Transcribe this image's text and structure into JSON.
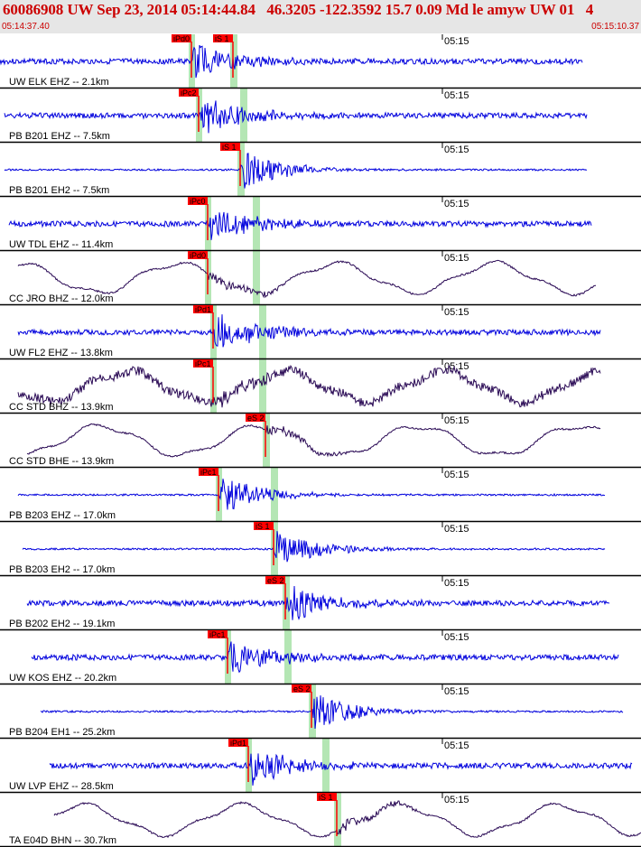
{
  "header": {
    "title": "60086908 UW Sep 23, 2014 05:14:44.84   46.3205 -122.3592 15.7 0.09 Md le amyw UW 01   4",
    "start_time": "05:14:37.40",
    "end_time": "05:15:10.37"
  },
  "colors": {
    "hp": "#0000dd",
    "bb": "#2a0a55",
    "pick": "#ff0000",
    "band": "#b4e6b4",
    "grid": "#000000"
  },
  "chart_data": {
    "type": "line",
    "title": "60086908 UW Sep 23, 2014 05:14:44.84   46.3205 -122.3592 15.7 0.09 Md le amyw UW 01   4",
    "xlim": [
      "05:14:37.40",
      "05:15:10.37"
    ],
    "minute_tick": "05:15",
    "traces": [
      {
        "label": "UW ELK EHZ -- 2.1km",
        "color": "blue",
        "picks": [
          "iPd0",
          "iS 1"
        ],
        "amp": "high"
      },
      {
        "label": "PB B201 EHZ -- 7.5km",
        "color": "blue",
        "picks": [
          "iPc2"
        ],
        "amp": "high"
      },
      {
        "label": "PB B201 EH2 -- 7.5km",
        "color": "blue",
        "picks": [
          "iS 1"
        ],
        "amp": "medium"
      },
      {
        "label": "UW TDL EHZ -- 11.4km",
        "color": "blue",
        "picks": [
          "iPc0"
        ],
        "amp": "high"
      },
      {
        "label": "CC JRO BHZ -- 12.0km",
        "color": "purple",
        "picks": [
          "iPd0"
        ],
        "amp": "long-period"
      },
      {
        "label": "UW FL2 EHZ -- 13.8km",
        "color": "blue",
        "picks": [
          "iPd1"
        ],
        "amp": "high"
      },
      {
        "label": "CC STD BHZ -- 13.9km",
        "color": "purple",
        "picks": [
          "iPc1"
        ],
        "amp": "long-period"
      },
      {
        "label": "CC STD BHE -- 13.9km",
        "color": "purple",
        "picks": [
          "eS 2"
        ],
        "amp": "long-period"
      },
      {
        "label": "PB B203 EHZ -- 17.0km",
        "color": "blue",
        "picks": [
          "iPc1"
        ],
        "amp": "medium"
      },
      {
        "label": "PB B203 EH2 -- 17.0km",
        "color": "blue",
        "picks": [
          "iS 1"
        ],
        "amp": "medium"
      },
      {
        "label": "PB B202 EH2 -- 19.1km",
        "color": "blue",
        "picks": [
          "eS 2"
        ],
        "amp": "high"
      },
      {
        "label": "UW KOS EHZ -- 20.2km",
        "color": "blue",
        "picks": [
          "iPc1"
        ],
        "amp": "high"
      },
      {
        "label": "PB B204 EH1 -- 25.2km",
        "color": "blue",
        "picks": [
          "eS 2"
        ],
        "amp": "medium"
      },
      {
        "label": "UW LVP EHZ -- 28.5km",
        "color": "blue",
        "picks": [
          "iPd1"
        ],
        "amp": "high"
      },
      {
        "label": "TA E04D BHN -- 30.7km",
        "color": "purple",
        "picks": [
          "iS 1"
        ],
        "amp": "long-period"
      }
    ]
  }
}
